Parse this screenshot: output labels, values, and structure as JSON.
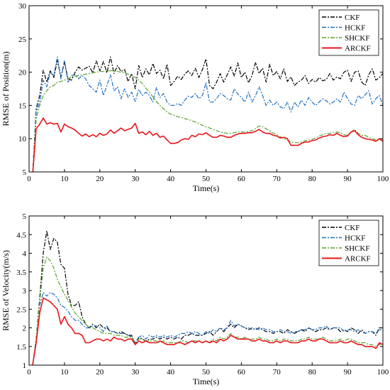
{
  "chart_data": [
    {
      "type": "line",
      "title": "",
      "xlabel": "Time(s)",
      "ylabel": "RMSE of Position(m)",
      "xlim": [
        0,
        100
      ],
      "ylim": [
        5,
        30
      ],
      "xticks": [
        0,
        10,
        20,
        30,
        40,
        50,
        60,
        70,
        80,
        90,
        100
      ],
      "yticks": [
        5,
        10,
        15,
        20,
        25,
        30
      ],
      "legend": "top-right",
      "grid": false,
      "x": [
        1,
        2,
        3,
        4,
        5,
        6,
        7,
        8,
        9,
        10,
        11,
        12,
        13,
        14,
        15,
        16,
        17,
        18,
        19,
        20,
        21,
        22,
        23,
        24,
        25,
        26,
        27,
        28,
        29,
        30,
        31,
        32,
        33,
        34,
        35,
        36,
        37,
        38,
        39,
        40,
        41,
        42,
        43,
        44,
        45,
        46,
        47,
        48,
        49,
        50,
        51,
        52,
        53,
        54,
        55,
        56,
        57,
        58,
        59,
        60,
        61,
        62,
        63,
        64,
        65,
        66,
        67,
        68,
        69,
        70,
        71,
        72,
        73,
        74,
        75,
        76,
        77,
        78,
        79,
        80,
        81,
        82,
        83,
        84,
        85,
        86,
        87,
        88,
        89,
        90,
        91,
        92,
        93,
        94,
        95,
        96,
        97,
        98,
        99,
        100
      ],
      "series": [
        {
          "name": "CKF",
          "color": "#000000",
          "dash": "6,2,2,2",
          "width": 1.2,
          "values": [
            4.5,
            14.5,
            16.5,
            20.3,
            18.5,
            20.2,
            19.2,
            21.8,
            19.3,
            21.5,
            19.0,
            18.8,
            20.0,
            20.8,
            20.3,
            20.6,
            20.9,
            19.9,
            21.7,
            20.2,
            21.6,
            19.9,
            22.3,
            19.8,
            21.0,
            20.1,
            20.4,
            18.6,
            19.8,
            17.5,
            21.0,
            19.2,
            20.5,
            19.6,
            21.3,
            19.8,
            20.3,
            19.0,
            21.2,
            18.0,
            18.6,
            19.4,
            18.9,
            19.7,
            20.2,
            19.5,
            20.6,
            19.2,
            20.4,
            22.0,
            18.0,
            17.5,
            18.5,
            19.8,
            18.5,
            19.6,
            20.8,
            19.4,
            21.4,
            19.2,
            20.0,
            18.4,
            19.5,
            21.5,
            19.8,
            20.6,
            18.5,
            21.2,
            19.5,
            20.1,
            19.0,
            20.5,
            18.6,
            19.3,
            18.0,
            18.5,
            18.8,
            19.5,
            18.3,
            18.9,
            18.5,
            19.2,
            18.7,
            18.9,
            19.8,
            18.8,
            19.3,
            19.0,
            20.0,
            20.3,
            18.6,
            20.0,
            20.2,
            18.5,
            18.0,
            19.6,
            20.5,
            18.8,
            19.2,
            19.8
          ]
        },
        {
          "name": "HCKF",
          "color": "#1f6fc0",
          "dash": "6,2,2,2",
          "width": 1.2,
          "values": [
            4.5,
            14.0,
            15.5,
            18.8,
            17.8,
            20.0,
            19.5,
            22.3,
            19.0,
            21.8,
            18.5,
            19.5,
            19.6,
            19.0,
            19.5,
            19.0,
            18.0,
            17.5,
            17.0,
            18.8,
            16.5,
            18.0,
            19.6,
            17.2,
            17.8,
            16.0,
            17.5,
            16.2,
            17.0,
            15.6,
            17.4,
            16.5,
            17.0,
            16.5,
            15.5,
            17.7,
            16.2,
            16.8,
            15.5,
            15.0,
            15.0,
            15.3,
            15.0,
            15.8,
            16.4,
            16.2,
            16.8,
            16.0,
            16.5,
            18.4,
            15.5,
            15.5,
            16.0,
            16.8,
            16.5,
            16.0,
            15.8,
            17.5,
            16.7,
            16.2,
            15.5,
            17.0,
            15.5,
            16.5,
            17.8,
            16.5,
            15.0,
            15.8,
            15.0,
            15.5,
            14.8,
            14.5,
            15.5,
            14.0,
            15.5,
            14.8,
            15.8,
            15.0,
            16.2,
            15.5,
            15.0,
            15.5,
            16.0,
            15.7,
            15.2,
            15.5,
            16.0,
            15.5,
            17.0,
            16.0,
            15.2,
            15.0,
            16.5,
            16.0,
            16.6,
            17.2,
            15.2,
            16.0,
            16.5,
            15.0
          ]
        },
        {
          "name": "SHCKF",
          "color": "#5aa02c",
          "dash": "6,2,2,2",
          "width": 1.2,
          "values": [
            4.5,
            13.0,
            15.0,
            16.5,
            17.2,
            17.8,
            18.0,
            18.5,
            18.6,
            18.8,
            19.0,
            19.3,
            19.4,
            19.5,
            19.6,
            19.7,
            19.8,
            19.9,
            20.0,
            20.1,
            20.1,
            20.2,
            20.2,
            20.2,
            20.1,
            20.0,
            19.9,
            19.7,
            19.5,
            19.2,
            18.8,
            18.3,
            17.6,
            17.0,
            16.3,
            15.6,
            15.0,
            14.5,
            14.0,
            13.7,
            13.5,
            13.3,
            13.2,
            13.0,
            12.9,
            12.7,
            12.5,
            12.3,
            12.0,
            11.8,
            11.6,
            11.4,
            11.2,
            11.0,
            10.9,
            10.8,
            10.8,
            10.9,
            11.0,
            11.0,
            11.0,
            11.1,
            11.2,
            11.5,
            11.9,
            11.8,
            11.5,
            11.2,
            10.8,
            10.6,
            10.3,
            10.0,
            9.8,
            9.5,
            9.4,
            9.4,
            9.5,
            9.7,
            9.8,
            9.9,
            10.1,
            10.4,
            10.6,
            10.8,
            10.8,
            10.9,
            11.0,
            10.9,
            10.6,
            10.5,
            11.0,
            11.4,
            10.8,
            10.5,
            10.5,
            10.2,
            10.0,
            9.8,
            9.8,
            9.7
          ]
        },
        {
          "name": "ARCKF",
          "color": "#e8141a",
          "dash": "",
          "width": 1.6,
          "values": [
            4.5,
            11.5,
            12.2,
            13.1,
            12.2,
            12.4,
            12.2,
            12.3,
            11.0,
            12.2,
            11.8,
            11.6,
            11.3,
            10.8,
            10.4,
            10.7,
            10.3,
            10.6,
            10.3,
            10.8,
            10.5,
            10.7,
            11.3,
            10.8,
            11.2,
            11.6,
            11.2,
            11.4,
            11.6,
            12.3,
            10.8,
            11.0,
            10.6,
            11.1,
            10.5,
            10.8,
            10.2,
            10.4,
            9.8,
            9.3,
            9.3,
            9.4,
            9.8,
            10.0,
            9.9,
            10.5,
            10.3,
            10.7,
            10.6,
            10.9,
            10.5,
            10.2,
            10.2,
            10.5,
            10.4,
            10.2,
            10.2,
            10.5,
            10.7,
            10.8,
            10.8,
            10.9,
            10.9,
            11.1,
            11.4,
            11.0,
            10.8,
            10.8,
            10.5,
            10.4,
            10.1,
            10.2,
            10.0,
            9.0,
            9.0,
            9.0,
            9.3,
            9.5,
            9.5,
            9.7,
            9.8,
            10.1,
            10.3,
            10.4,
            10.6,
            10.5,
            10.8,
            10.5,
            10.3,
            10.4,
            11.0,
            11.2,
            10.6,
            10.2,
            10.0,
            9.9,
            9.8,
            9.6,
            10.0,
            9.6
          ]
        }
      ]
    },
    {
      "type": "line",
      "title": "",
      "xlabel": "Time(s)",
      "ylabel": "RMSE of Velocity(m/s)",
      "xlim": [
        0,
        100
      ],
      "ylim": [
        1,
        5
      ],
      "xticks": [
        0,
        10,
        20,
        30,
        40,
        50,
        60,
        70,
        80,
        90,
        100
      ],
      "yticks": [
        1,
        1.5,
        2,
        2.5,
        3,
        3.5,
        4,
        4.5,
        5
      ],
      "legend": "top-right",
      "grid": false,
      "x": [
        1,
        2,
        3,
        4,
        5,
        6,
        7,
        8,
        9,
        10,
        11,
        12,
        13,
        14,
        15,
        16,
        17,
        18,
        19,
        20,
        21,
        22,
        23,
        24,
        25,
        26,
        27,
        28,
        29,
        30,
        31,
        32,
        33,
        34,
        35,
        36,
        37,
        38,
        39,
        40,
        41,
        42,
        43,
        44,
        45,
        46,
        47,
        48,
        49,
        50,
        51,
        52,
        53,
        54,
        55,
        56,
        57,
        58,
        59,
        60,
        61,
        62,
        63,
        64,
        65,
        66,
        67,
        68,
        69,
        70,
        71,
        72,
        73,
        74,
        75,
        76,
        77,
        78,
        79,
        80,
        81,
        82,
        83,
        84,
        85,
        86,
        87,
        88,
        89,
        90,
        91,
        92,
        93,
        94,
        95,
        96,
        97,
        98,
        99,
        100
      ],
      "series": [
        {
          "name": "CKF",
          "color": "#000000",
          "dash": "6,2,2,2",
          "width": 1.2,
          "values": [
            1.0,
            1.7,
            2.8,
            4.0,
            4.6,
            4.1,
            4.4,
            4.3,
            3.7,
            3.6,
            2.9,
            2.6,
            2.6,
            2.7,
            2.3,
            2.1,
            2.0,
            2.1,
            2.0,
            2.1,
            2.0,
            2.0,
            1.9,
            1.9,
            1.85,
            1.9,
            1.85,
            1.8,
            1.8,
            1.55,
            1.75,
            1.7,
            1.65,
            1.7,
            1.7,
            1.75,
            1.7,
            1.75,
            1.7,
            1.75,
            1.7,
            1.75,
            1.7,
            1.8,
            1.8,
            1.85,
            1.8,
            1.8,
            1.8,
            1.85,
            1.9,
            1.8,
            1.9,
            2.0,
            1.9,
            2.0,
            2.1,
            2.0,
            2.1,
            2.05,
            2.0,
            1.95,
            2.0,
            1.95,
            2.0,
            1.95,
            1.9,
            1.9,
            1.85,
            1.9,
            1.9,
            1.85,
            1.95,
            1.9,
            1.85,
            1.9,
            1.95,
            1.9,
            2.0,
            1.95,
            1.9,
            1.95,
            1.95,
            2.0,
            1.95,
            2.0,
            2.0,
            1.9,
            1.95,
            1.9,
            2.0,
            1.95,
            1.85,
            1.95,
            1.85,
            1.9,
            1.9,
            1.8,
            2.0,
            2.0
          ]
        },
        {
          "name": "HCKF",
          "color": "#1f6fc0",
          "dash": "6,2,2,2",
          "width": 1.2,
          "values": [
            1.0,
            1.6,
            2.6,
            2.95,
            2.85,
            2.95,
            2.9,
            2.8,
            2.6,
            2.55,
            2.45,
            2.3,
            2.2,
            2.2,
            2.1,
            2.0,
            2.0,
            2.05,
            2.05,
            2.0,
            1.9,
            2.05,
            1.9,
            1.9,
            1.85,
            1.85,
            1.85,
            1.8,
            1.75,
            1.6,
            1.75,
            1.8,
            1.7,
            1.8,
            1.75,
            1.8,
            1.75,
            1.8,
            1.75,
            1.8,
            1.75,
            1.8,
            1.85,
            1.85,
            1.9,
            1.85,
            1.9,
            1.85,
            1.8,
            1.9,
            1.85,
            1.95,
            1.9,
            2.0,
            1.95,
            2.0,
            2.2,
            2.05,
            2.1,
            2.05,
            2.0,
            2.0,
            1.95,
            2.0,
            1.95,
            2.0,
            1.95,
            1.95,
            1.9,
            1.9,
            1.95,
            1.9,
            1.9,
            1.85,
            1.9,
            1.9,
            1.95,
            1.95,
            2.0,
            1.95,
            1.95,
            2.0,
            2.0,
            2.05,
            1.95,
            2.0,
            2.0,
            2.0,
            1.9,
            1.95,
            1.95,
            1.9,
            1.95,
            1.9,
            1.85,
            1.9,
            1.9,
            1.85,
            1.95,
            1.95
          ]
        },
        {
          "name": "SHCKF",
          "color": "#5aa02c",
          "dash": "6,2,2,2",
          "width": 1.2,
          "values": [
            1.0,
            1.7,
            2.7,
            3.6,
            3.9,
            3.8,
            3.6,
            3.3,
            3.1,
            2.9,
            2.75,
            2.55,
            2.4,
            2.3,
            2.2,
            2.1,
            2.0,
            2.0,
            1.95,
            1.9,
            1.85,
            1.85,
            1.85,
            1.8,
            1.8,
            1.8,
            1.75,
            1.75,
            1.75,
            1.6,
            1.7,
            1.7,
            1.65,
            1.65,
            1.65,
            1.65,
            1.6,
            1.65,
            1.6,
            1.6,
            1.6,
            1.6,
            1.65,
            1.65,
            1.6,
            1.65,
            1.65,
            1.65,
            1.6,
            1.65,
            1.6,
            1.7,
            1.65,
            1.75,
            1.7,
            1.75,
            1.85,
            1.75,
            1.75,
            1.7,
            1.75,
            1.7,
            1.7,
            1.7,
            1.75,
            1.7,
            1.7,
            1.65,
            1.65,
            1.7,
            1.65,
            1.7,
            1.7,
            1.65,
            1.65,
            1.65,
            1.7,
            1.7,
            1.75,
            1.7,
            1.7,
            1.7,
            1.75,
            1.7,
            1.65,
            1.65,
            1.65,
            1.7,
            1.65,
            1.7,
            1.7,
            1.65,
            1.6,
            1.6,
            1.6,
            1.55,
            1.55,
            1.5,
            1.55,
            1.55
          ]
        },
        {
          "name": "ARCKF",
          "color": "#e8141a",
          "dash": "",
          "width": 1.6,
          "values": [
            1.0,
            1.6,
            2.4,
            2.8,
            2.75,
            2.7,
            2.6,
            2.5,
            2.1,
            2.3,
            2.1,
            2.0,
            1.85,
            1.85,
            1.8,
            1.6,
            1.6,
            1.65,
            1.7,
            1.7,
            1.65,
            1.7,
            1.65,
            1.75,
            1.7,
            1.7,
            1.65,
            1.7,
            1.7,
            1.55,
            1.65,
            1.6,
            1.65,
            1.6,
            1.6,
            1.6,
            1.65,
            1.6,
            1.55,
            1.55,
            1.55,
            1.6,
            1.6,
            1.55,
            1.6,
            1.65,
            1.6,
            1.65,
            1.6,
            1.65,
            1.6,
            1.65,
            1.6,
            1.7,
            1.65,
            1.7,
            1.8,
            1.75,
            1.7,
            1.7,
            1.7,
            1.7,
            1.65,
            1.65,
            1.7,
            1.65,
            1.65,
            1.6,
            1.6,
            1.65,
            1.6,
            1.65,
            1.65,
            1.6,
            1.6,
            1.6,
            1.65,
            1.65,
            1.7,
            1.65,
            1.65,
            1.7,
            1.7,
            1.65,
            1.6,
            1.6,
            1.6,
            1.65,
            1.6,
            1.6,
            1.65,
            1.6,
            1.55,
            1.55,
            1.5,
            1.5,
            1.5,
            1.45,
            1.6,
            1.55
          ]
        }
      ]
    }
  ]
}
